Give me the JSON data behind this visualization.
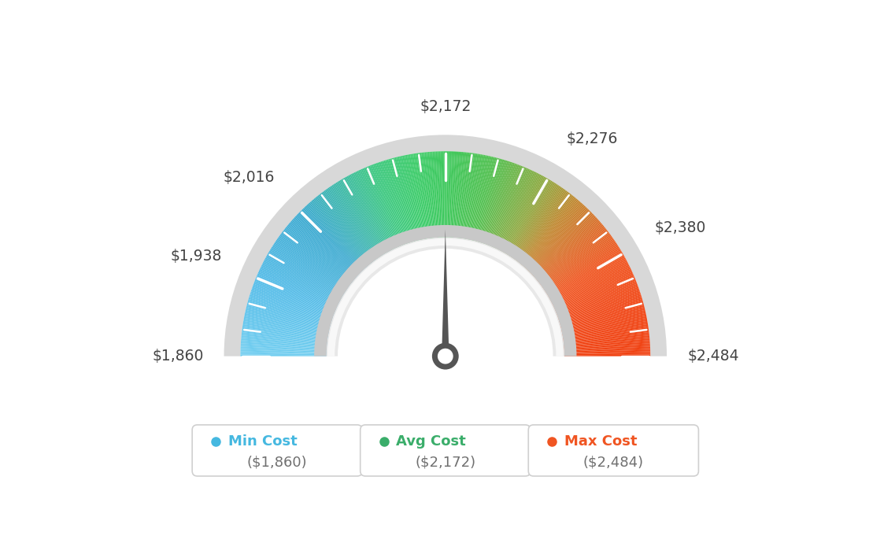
{
  "min_val": 1860,
  "max_val": 2484,
  "avg_val": 2172,
  "tick_labels": [
    "$1,860",
    "$1,938",
    "$2,016",
    "$2,172",
    "$2,276",
    "$2,380",
    "$2,484"
  ],
  "tick_values": [
    1860,
    1938,
    2016,
    2172,
    2276,
    2380,
    2484
  ],
  "legend_items": [
    {
      "label": "Min Cost",
      "value": "($1,860)",
      "color": "#45b8e0"
    },
    {
      "label": "Avg Cost",
      "value": "($2,172)",
      "color": "#3aad6a"
    },
    {
      "label": "Max Cost",
      "value": "($2,484)",
      "color": "#f05522"
    }
  ],
  "color_stops": [
    [
      1860,
      "#72cef0"
    ],
    [
      1938,
      "#55bce8"
    ],
    [
      2016,
      "#3daad0"
    ],
    [
      2060,
      "#3db8a8"
    ],
    [
      2100,
      "#3dc880"
    ],
    [
      2140,
      "#3dcc6a"
    ],
    [
      2172,
      "#3dc85c"
    ],
    [
      2220,
      "#52c050"
    ],
    [
      2276,
      "#90a840"
    ],
    [
      2310,
      "#c08830"
    ],
    [
      2350,
      "#e06828"
    ],
    [
      2380,
      "#f05520"
    ],
    [
      2430,
      "#f04818"
    ],
    [
      2484,
      "#f04010"
    ]
  ],
  "background_color": "#ffffff",
  "needle_color": "#555555",
  "outer_ring_color": "#c8c8c8",
  "inner_ring_color_dark": "#d0d0d0",
  "inner_ring_color_light": "#f0f0f0"
}
